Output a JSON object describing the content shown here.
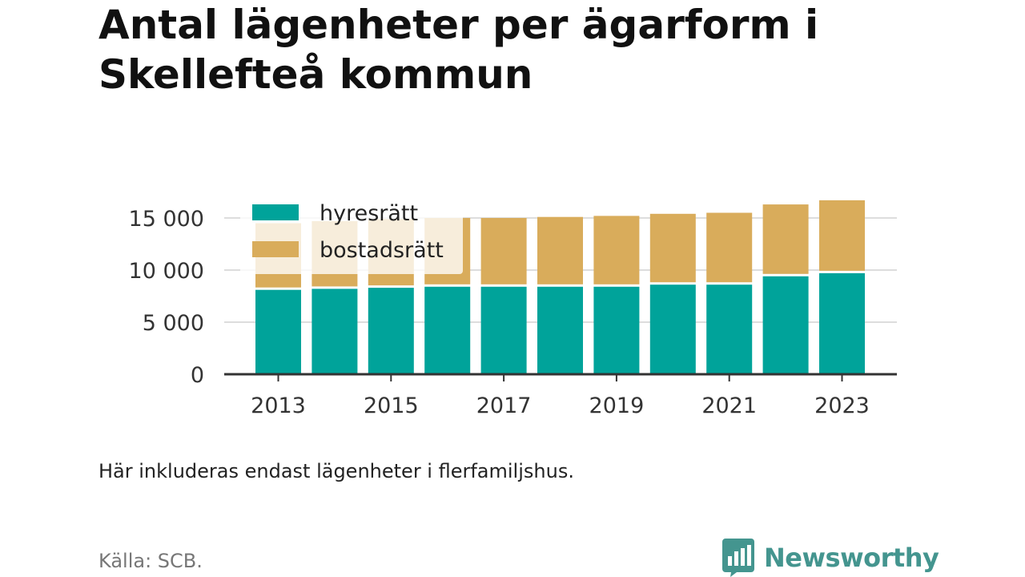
{
  "title": "Antal lägenheter per ägarform i Skellefteå kommun",
  "note": "Här inkluderas endast lägenheter i flerfamiljshus.",
  "source": "Källa: SCB.",
  "brand": {
    "name": "Newsworthy",
    "icon": "bar-chart-speech-bubble-icon",
    "color": "#44958f"
  },
  "colors": {
    "hyresratt": "#00a39a",
    "bostadsratt": "#d9ac5b",
    "grid": "#dddddd",
    "axis": "#333333"
  },
  "chart_data": {
    "type": "bar",
    "stacked": true,
    "x": [
      2013,
      2014,
      2015,
      2016,
      2017,
      2018,
      2019,
      2020,
      2021,
      2022,
      2023
    ],
    "x_tick_labels": [
      "2013",
      "2015",
      "2017",
      "2019",
      "2021",
      "2023"
    ],
    "y_tick_labels": [
      "0",
      "5 000",
      "10 000",
      "15 000"
    ],
    "ylim": [
      0,
      17000
    ],
    "series": [
      {
        "name": "hyresrätt",
        "color": "#00a39a",
        "values": [
          8100,
          8200,
          8300,
          8400,
          8400,
          8400,
          8400,
          8600,
          8600,
          9400,
          9700
        ]
      },
      {
        "name": "bostadsrätt",
        "color": "#d9ac5b",
        "values": [
          6400,
          6500,
          6600,
          6600,
          6600,
          6700,
          6800,
          6800,
          6900,
          6900,
          7000
        ]
      }
    ],
    "grid": true,
    "legend_position": "top-left",
    "xlabel": "",
    "ylabel": ""
  }
}
